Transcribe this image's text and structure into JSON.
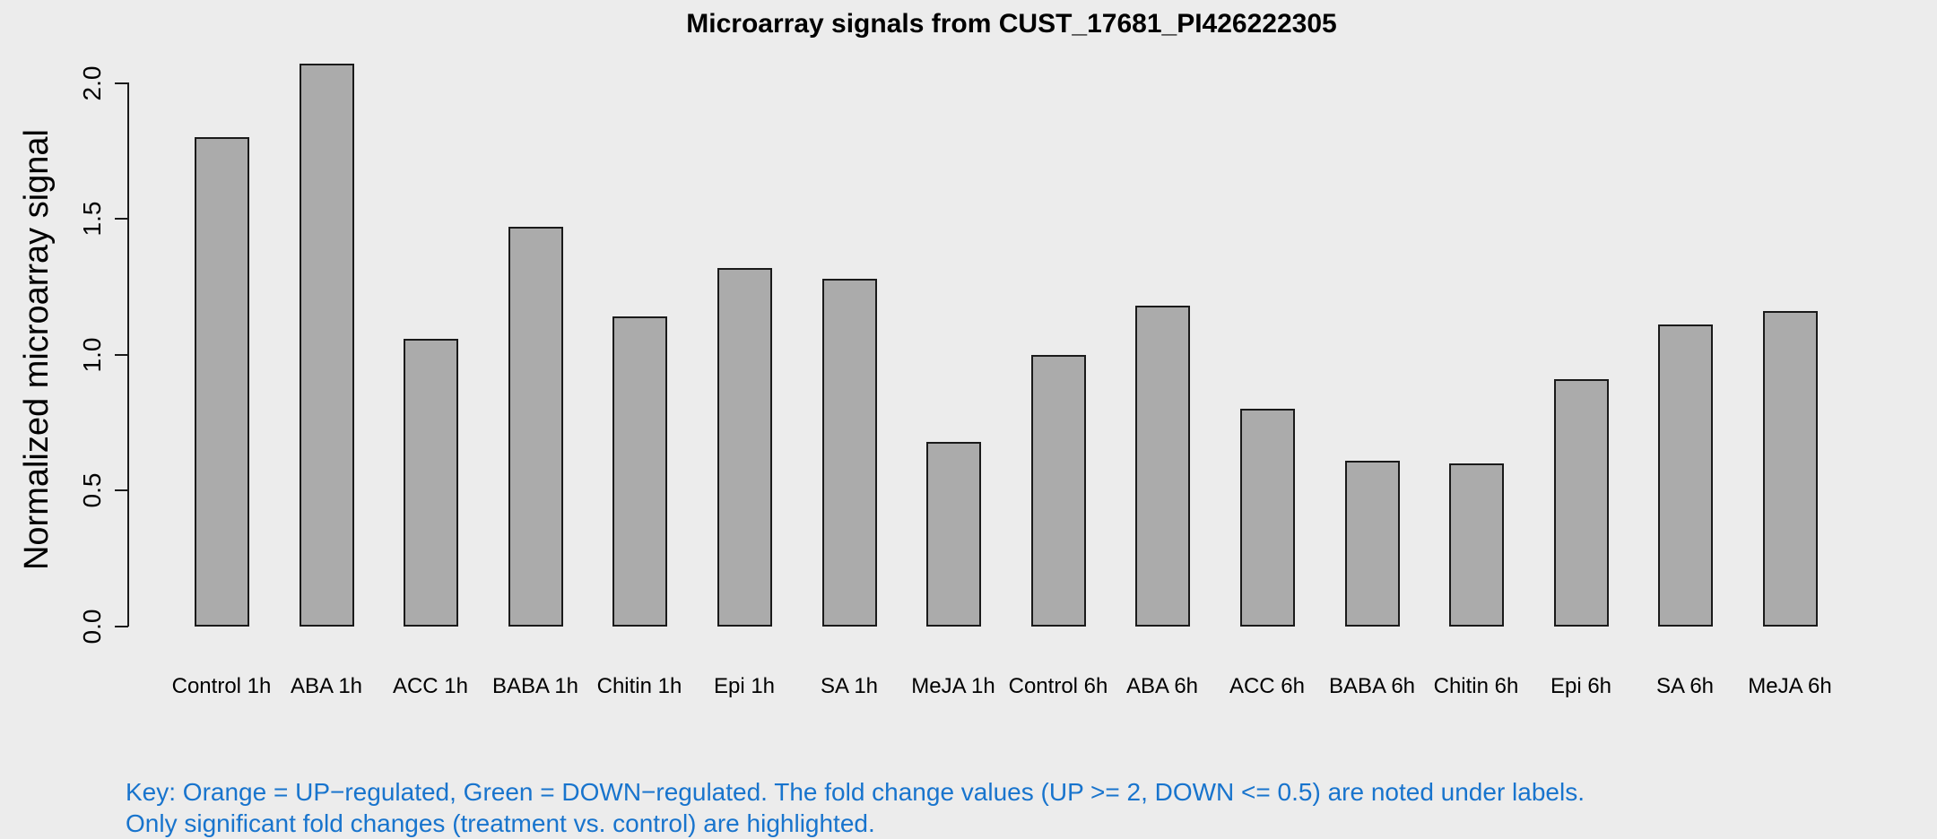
{
  "page": {
    "background": "#ECECEC"
  },
  "title": {
    "text": "Microarray signals from CUST_17681_PI426222305"
  },
  "y_axis": {
    "label": "Normalized microarray signal",
    "tick_labels": [
      "0.0",
      "0.5",
      "1.0",
      "1.5",
      "2.0"
    ]
  },
  "footnote": {
    "line1": "Key: Orange = UP−regulated, Green = DOWN−regulated. The fold change values (UP >= 2, DOWN <= 0.5) are noted under labels.",
    "line2": "Only significant fold changes (treatment vs. control) are highlighted.",
    "color": "#1874CD"
  },
  "colors": {
    "background": "#ECECEC",
    "bar_fill": "#ABABAB",
    "bar_border": "#1A1A1A",
    "axis": "#1A1A1A",
    "text": "#000000"
  },
  "chart_data": {
    "type": "bar",
    "title": "Microarray signals from CUST_17681_PI426222305",
    "categories": [
      "Control 1h",
      "ABA 1h",
      "ACC 1h",
      "BABA 1h",
      "Chitin 1h",
      "Epi 1h",
      "SA 1h",
      "MeJA 1h",
      "Control 6h",
      "ABA 6h",
      "ACC 6h",
      "BABA 6h",
      "Chitin 6h",
      "Epi 6h",
      "SA 6h",
      "MeJA 6h"
    ],
    "values": [
      1.8,
      2.07,
      1.06,
      1.47,
      1.14,
      1.32,
      1.28,
      0.68,
      1.0,
      1.18,
      0.8,
      0.61,
      0.6,
      0.91,
      1.11,
      1.16
    ],
    "xlabel": "",
    "ylabel": "Normalized microarray signal",
    "ylim": [
      0.0,
      2.07
    ],
    "yticks": [
      0.0,
      0.5,
      1.0,
      1.5,
      2.0
    ],
    "grid": false,
    "legend_position": "none",
    "bar_fill": "#ABABAB"
  }
}
